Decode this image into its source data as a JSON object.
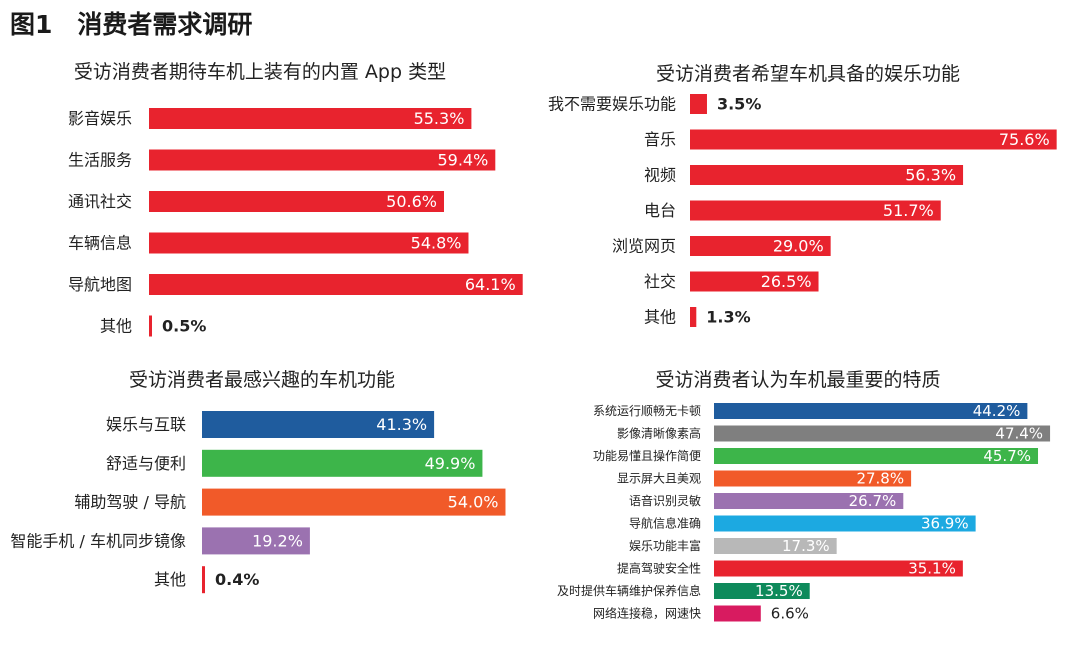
{
  "page": {
    "title": "图1　消费者需求调研"
  },
  "chart_data": [
    {
      "type": "bar",
      "orientation": "horizontal",
      "title": "受访消费者期待车机上装有的内置 App 类型",
      "categories": [
        "影音娱乐",
        "生活服务",
        "通讯社交",
        "车辆信息",
        "导航地图",
        "其他"
      ],
      "values": [
        55.3,
        59.4,
        50.6,
        54.8,
        64.1,
        0.5
      ],
      "labels": [
        "55.3%",
        "59.4%",
        "50.6%",
        "54.8%",
        "64.1%",
        "0.5%"
      ],
      "colors": [
        "#e8232e",
        "#e8232e",
        "#e8232e",
        "#e8232e",
        "#e8232e",
        "#e8232e"
      ],
      "unit": "%"
    },
    {
      "type": "bar",
      "orientation": "horizontal",
      "title": "受访消费者希望车机具备的娱乐功能",
      "categories": [
        "我不需要娱乐功能",
        "音乐",
        "视频",
        "电台",
        "浏览网页",
        "社交",
        "其他"
      ],
      "values": [
        3.5,
        75.6,
        56.3,
        51.7,
        29.0,
        26.5,
        1.3
      ],
      "labels": [
        "3.5%",
        "75.6%",
        "56.3%",
        "51.7%",
        "29.0%",
        "26.5%",
        "1.3%"
      ],
      "colors": [
        "#e8232e",
        "#e8232e",
        "#e8232e",
        "#e8232e",
        "#e8232e",
        "#e8232e",
        "#e8232e"
      ],
      "unit": "%"
    },
    {
      "type": "bar",
      "orientation": "horizontal",
      "title": "受访消费者最感兴趣的车机功能",
      "categories": [
        "娱乐与互联",
        "舒适与便利",
        "辅助驾驶 / 导航",
        "智能手机 / 车机同步镜像",
        "其他"
      ],
      "values": [
        41.3,
        49.9,
        54.0,
        19.2,
        0.4
      ],
      "labels": [
        "41.3%",
        "49.9%",
        "54.0%",
        "19.2%",
        "0.4%"
      ],
      "colors": [
        "#1f5c9e",
        "#3db54a",
        "#f15a29",
        "#9b72b0",
        "#e8232e"
      ],
      "unit": "%"
    },
    {
      "type": "bar",
      "orientation": "horizontal",
      "title": "受访消费者认为车机最重要的特质",
      "categories": [
        "系统运行顺畅无卡顿",
        "影像清晰像素高",
        "功能易懂且操作简便",
        "显示屏大且美观",
        "语音识别灵敏",
        "导航信息准确",
        "娱乐功能丰富",
        "提高驾驶安全性",
        "及时提供车辆维护保养信息",
        "网络连接稳，网速快"
      ],
      "values": [
        44.2,
        47.4,
        45.7,
        27.8,
        26.7,
        36.9,
        17.3,
        35.1,
        13.5,
        6.6
      ],
      "labels": [
        "44.2%",
        "47.4%",
        "45.7%",
        "27.8%",
        "26.7%",
        "36.9%",
        "17.3%",
        "35.1%",
        "13.5%",
        "6.6%"
      ],
      "colors": [
        "#1f5c9e",
        "#7f7f7f",
        "#3db54a",
        "#f15a29",
        "#9b72b0",
        "#1ca9e1",
        "#b8b8b8",
        "#e8232e",
        "#0e8a5b",
        "#d81b60"
      ],
      "unit": "%"
    }
  ]
}
